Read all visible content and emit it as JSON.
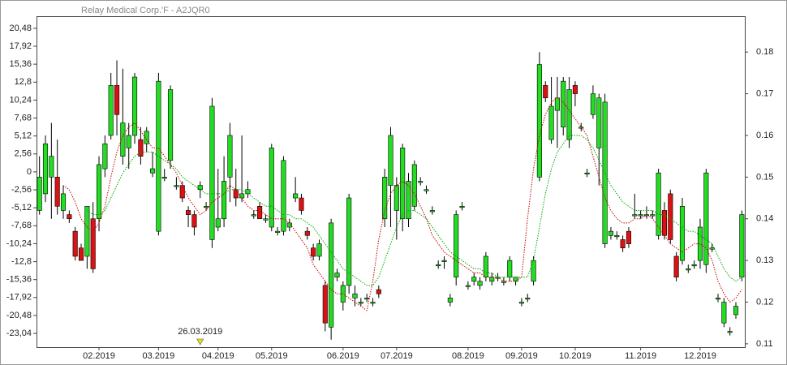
{
  "chart_data": {
    "type": "candlestick",
    "title": "Relay Medical Corp.'F - A2JQR0",
    "categories": [
      null,
      null,
      null,
      null,
      null,
      null,
      null,
      null,
      null,
      null,
      "02.2019",
      null,
      null,
      null,
      null,
      null,
      null,
      null,
      null,
      null,
      "03.2019",
      null,
      null,
      null,
      null,
      null,
      null,
      null,
      null,
      null,
      "04.2019",
      null,
      null,
      null,
      null,
      null,
      null,
      null,
      null,
      "05.2019",
      null,
      null,
      null,
      null,
      null,
      null,
      null,
      null,
      null,
      null,
      null,
      "06.2019",
      null,
      null,
      null,
      null,
      null,
      null,
      null,
      null,
      "07.2019",
      null,
      null,
      null,
      null,
      null,
      null,
      null,
      null,
      null,
      null,
      null,
      "08.2019",
      null,
      null,
      null,
      null,
      null,
      null,
      null,
      null,
      "09.2019",
      null,
      null,
      null,
      null,
      null,
      null,
      null,
      null,
      "10.2019",
      null,
      null,
      null,
      null,
      null,
      null,
      null,
      null,
      null,
      null,
      "11.2019",
      null,
      null,
      null,
      null,
      null,
      null,
      null,
      null,
      null,
      "12.2019",
      null,
      null,
      null,
      null,
      null,
      null,
      null
    ],
    "candles": {
      "axis": "y2",
      "up_color": "#22dd22",
      "down_color": "#dd1111",
      "open": [
        0.142,
        0.146,
        0.15,
        0.15,
        0.142,
        0.141,
        0.137,
        0.133,
        0.131,
        0.14,
        0.14,
        0.152,
        0.16,
        0.172,
        0.155,
        0.157,
        0.16,
        0.159,
        0.158,
        0.151,
        0.137,
        0.15,
        0.154,
        0.148,
        0.148,
        0.142,
        0.141,
        0.147,
        0.143,
        0.135,
        0.138,
        0.14,
        0.15,
        0.147,
        0.145,
        0.146,
        0.141,
        0.143,
        0.14,
        0.138,
        0.137,
        0.137,
        0.138,
        0.145,
        0.145,
        0.137,
        0.133,
        0.131,
        0.124,
        0.114,
        0.126,
        0.12,
        0.124,
        0.121,
        0.12,
        0.121,
        0.12,
        0.123,
        0.14,
        0.148,
        0.142,
        0.14,
        0.14,
        0.143,
        0.149,
        0.147,
        0.142,
        0.129,
        0.13,
        0.12,
        0.126,
        0.143,
        0.124,
        0.125,
        0.124,
        0.126,
        0.125,
        0.126,
        0.125,
        0.126,
        0.125,
        0.12,
        0.121,
        0.125,
        0.15,
        0.172,
        0.159,
        0.166,
        0.162,
        0.159,
        0.172,
        0.162,
        0.151,
        0.165,
        0.157,
        0.134,
        0.136,
        0.136,
        0.135,
        0.137,
        0.141,
        0.141,
        0.141,
        0.141,
        0.136,
        0.142,
        0.146,
        0.131,
        0.13,
        0.128,
        0.129,
        0.13,
        0.129,
        0.133,
        0.121,
        0.115,
        0.113,
        0.117,
        0.126
      ],
      "high": [
        0.155,
        0.16,
        0.163,
        0.159,
        0.148,
        0.142,
        0.138,
        0.134,
        0.143,
        0.144,
        0.155,
        0.16,
        0.175,
        0.178,
        0.176,
        0.163,
        0.175,
        0.162,
        0.162,
        0.156,
        0.175,
        0.152,
        0.172,
        0.15,
        0.149,
        0.143,
        0.142,
        0.149,
        0.144,
        0.169,
        0.152,
        0.155,
        0.163,
        0.152,
        0.16,
        0.149,
        0.142,
        0.144,
        0.141,
        0.158,
        0.138,
        0.155,
        0.14,
        0.15,
        0.146,
        0.138,
        0.134,
        0.135,
        0.125,
        0.14,
        0.128,
        0.125,
        0.146,
        0.124,
        0.121,
        0.122,
        0.121,
        0.124,
        0.152,
        0.162,
        0.15,
        0.158,
        0.151,
        0.154,
        0.15,
        0.148,
        0.143,
        0.13,
        0.131,
        0.122,
        0.142,
        0.144,
        0.125,
        0.127,
        0.126,
        0.132,
        0.127,
        0.127,
        0.126,
        0.131,
        0.126,
        0.121,
        0.122,
        0.131,
        0.18,
        0.173,
        0.174,
        0.174,
        0.174,
        0.174,
        0.173,
        0.163,
        0.152,
        0.172,
        0.17,
        0.17,
        0.138,
        0.137,
        0.136,
        0.138,
        0.146,
        0.142,
        0.143,
        0.142,
        0.152,
        0.144,
        0.147,
        0.132,
        0.145,
        0.129,
        0.13,
        0.14,
        0.152,
        0.134,
        0.122,
        0.121,
        0.114,
        0.12,
        0.142
      ],
      "low": [
        0.141,
        0.144,
        0.14,
        0.141,
        0.14,
        0.139,
        0.13,
        0.13,
        0.128,
        0.127,
        0.137,
        0.15,
        0.159,
        0.16,
        0.153,
        0.152,
        0.158,
        0.153,
        0.156,
        0.15,
        0.136,
        0.149,
        0.152,
        0.147,
        0.144,
        0.138,
        0.136,
        0.145,
        0.142,
        0.133,
        0.137,
        0.138,
        0.144,
        0.143,
        0.144,
        0.145,
        0.14,
        0.14,
        0.139,
        0.137,
        0.136,
        0.136,
        0.137,
        0.144,
        0.141,
        0.135,
        0.13,
        0.13,
        0.113,
        0.111,
        0.125,
        0.118,
        0.122,
        0.119,
        0.119,
        0.12,
        0.119,
        0.121,
        0.138,
        0.138,
        0.135,
        0.137,
        0.138,
        0.142,
        0.148,
        0.146,
        0.141,
        0.128,
        0.128,
        0.119,
        0.124,
        0.142,
        0.123,
        0.124,
        0.123,
        0.125,
        0.124,
        0.125,
        0.124,
        0.125,
        0.124,
        0.119,
        0.12,
        0.124,
        0.149,
        0.168,
        0.158,
        0.157,
        0.16,
        0.157,
        0.167,
        0.161,
        0.15,
        0.164,
        0.148,
        0.133,
        0.135,
        0.135,
        0.132,
        0.133,
        0.14,
        0.14,
        0.14,
        0.14,
        0.135,
        0.135,
        0.134,
        0.125,
        0.129,
        0.127,
        0.128,
        0.128,
        0.127,
        0.132,
        0.12,
        0.114,
        0.112,
        0.116,
        0.125
      ],
      "close": [
        0.15,
        0.158,
        0.155,
        0.143,
        0.146,
        0.14,
        0.131,
        0.13,
        0.143,
        0.128,
        0.153,
        0.158,
        0.172,
        0.165,
        0.163,
        0.16,
        0.174,
        0.155,
        0.161,
        0.152,
        0.173,
        0.15,
        0.171,
        0.148,
        0.145,
        0.141,
        0.138,
        0.148,
        0.143,
        0.167,
        0.14,
        0.149,
        0.16,
        0.145,
        0.146,
        0.147,
        0.141,
        0.14,
        0.14,
        0.157,
        0.137,
        0.154,
        0.139,
        0.146,
        0.142,
        0.136,
        0.131,
        0.134,
        0.115,
        0.139,
        0.127,
        0.124,
        0.145,
        0.122,
        0.12,
        0.121,
        0.12,
        0.122,
        0.15,
        0.16,
        0.148,
        0.157,
        0.149,
        0.153,
        0.149,
        0.147,
        0.142,
        0.129,
        0.13,
        0.121,
        0.141,
        0.143,
        0.124,
        0.126,
        0.125,
        0.131,
        0.126,
        0.126,
        0.125,
        0.13,
        0.126,
        0.12,
        0.121,
        0.13,
        0.177,
        0.169,
        0.167,
        0.169,
        0.173,
        0.171,
        0.17,
        0.162,
        0.151,
        0.17,
        0.169,
        0.168,
        0.137,
        0.136,
        0.133,
        0.134,
        0.141,
        0.141,
        0.141,
        0.141,
        0.151,
        0.136,
        0.135,
        0.126,
        0.143,
        0.128,
        0.129,
        0.138,
        0.151,
        0.133,
        0.121,
        0.12,
        0.113,
        0.119,
        0.141
      ]
    },
    "series": [
      {
        "color": "#cc0000",
        "axis": "y2",
        "style": "dotted",
        "values": [
          null,
          null,
          null,
          null,
          0.148,
          0.147,
          0.144,
          0.14,
          0.138,
          0.137,
          0.139,
          0.143,
          0.15,
          0.156,
          0.16,
          0.162,
          0.163,
          0.161,
          0.159,
          0.157,
          0.157,
          0.155,
          0.153,
          0.151,
          0.148,
          0.145,
          0.143,
          0.141,
          0.142,
          0.144,
          0.145,
          0.146,
          0.148,
          0.147,
          0.145,
          0.143,
          0.142,
          0.142,
          0.141,
          0.14,
          0.14,
          0.14,
          0.139,
          0.137,
          0.135,
          0.133,
          0.129,
          0.127,
          0.125,
          0.123,
          0.122,
          0.122,
          0.121,
          0.12,
          0.119,
          0.118,
          0.125,
          0.135,
          0.142,
          0.146,
          0.148,
          0.149,
          0.148,
          0.146,
          0.143,
          0.14,
          0.136,
          0.134,
          0.132,
          0.131,
          0.13,
          0.129,
          0.128,
          0.127,
          0.127,
          0.126,
          0.126,
          0.126,
          0.125,
          0.125,
          0.125,
          0.126,
          0.14,
          0.152,
          0.16,
          0.165,
          0.168,
          0.169,
          0.168,
          0.166,
          0.164,
          0.162,
          0.16,
          0.155,
          0.15,
          0.145,
          0.142,
          0.14,
          0.139,
          0.139,
          0.14,
          0.14,
          0.141,
          0.14,
          0.138,
          0.136,
          0.134,
          0.133,
          0.132,
          0.133,
          0.134,
          0.134,
          0.133,
          0.13,
          0.125,
          0.122,
          0.12,
          0.121,
          0.123
        ]
      },
      {
        "color": "#00aa00",
        "axis": "y2",
        "style": "dotted",
        "values": [
          null,
          null,
          null,
          null,
          null,
          null,
          null,
          null,
          0.142,
          0.141,
          0.141,
          0.142,
          0.145,
          0.148,
          0.151,
          0.153,
          0.155,
          0.156,
          0.156,
          0.156,
          0.155,
          0.154,
          0.153,
          0.152,
          0.15,
          0.149,
          0.148,
          0.147,
          0.146,
          0.146,
          0.146,
          0.146,
          0.147,
          0.147,
          0.147,
          0.146,
          0.145,
          0.144,
          0.143,
          0.143,
          0.142,
          0.141,
          0.141,
          0.14,
          0.14,
          0.139,
          0.138,
          0.136,
          0.134,
          0.132,
          0.13,
          0.128,
          0.127,
          0.126,
          0.125,
          0.124,
          0.124,
          0.126,
          0.13,
          0.134,
          0.138,
          0.141,
          0.142,
          0.142,
          0.141,
          0.14,
          0.138,
          0.136,
          0.134,
          0.132,
          0.131,
          0.13,
          0.129,
          0.128,
          0.128,
          0.127,
          0.127,
          0.126,
          0.126,
          0.126,
          0.126,
          0.126,
          0.126,
          0.13,
          0.138,
          0.146,
          0.152,
          0.156,
          0.158,
          0.16,
          0.16,
          0.16,
          0.159,
          0.157,
          0.154,
          0.151,
          0.148,
          0.146,
          0.144,
          0.143,
          0.142,
          0.142,
          0.142,
          0.142,
          0.141,
          0.141,
          0.14,
          0.139,
          0.138,
          0.137,
          0.137,
          0.136,
          0.135,
          0.134,
          0.131,
          0.128,
          0.126,
          0.125,
          0.126
        ]
      }
    ],
    "annotation": {
      "text": "26.03.2019",
      "index": 27,
      "color": "#f2e200"
    },
    "ylim": [
      -25,
      22.2
    ],
    "yticks": [
      {
        "value": 20.48,
        "label": "20,48"
      },
      {
        "value": 17.92,
        "label": "17,92"
      },
      {
        "value": 15.36,
        "label": "15,36"
      },
      {
        "value": 12.8,
        "label": "12,8"
      },
      {
        "value": 10.24,
        "label": "10,24"
      },
      {
        "value": 7.68,
        "label": "7,68"
      },
      {
        "value": 5.12,
        "label": "5,12"
      },
      {
        "value": 2.56,
        "label": "2,56"
      },
      0,
      {
        "value": -2.56,
        "label": "-2,56"
      },
      {
        "value": -5.12,
        "label": "-5,12"
      },
      {
        "value": -7.68,
        "label": "-7,68"
      },
      {
        "value": -10.24,
        "label": "-10,24"
      },
      {
        "value": -12.8,
        "label": "-12,8"
      },
      {
        "value": -15.36,
        "label": "-15,36"
      },
      {
        "value": -17.92,
        "label": "-17,92"
      },
      {
        "value": -20.48,
        "label": "-20,48"
      },
      {
        "value": -23.04,
        "label": "-23,04"
      }
    ],
    "y2lim": [
      0.1092,
      0.1886
    ],
    "y2ticks": [
      0.11,
      0.12,
      0.13,
      0.14,
      0.15,
      0.16,
      0.17,
      0.18
    ]
  }
}
